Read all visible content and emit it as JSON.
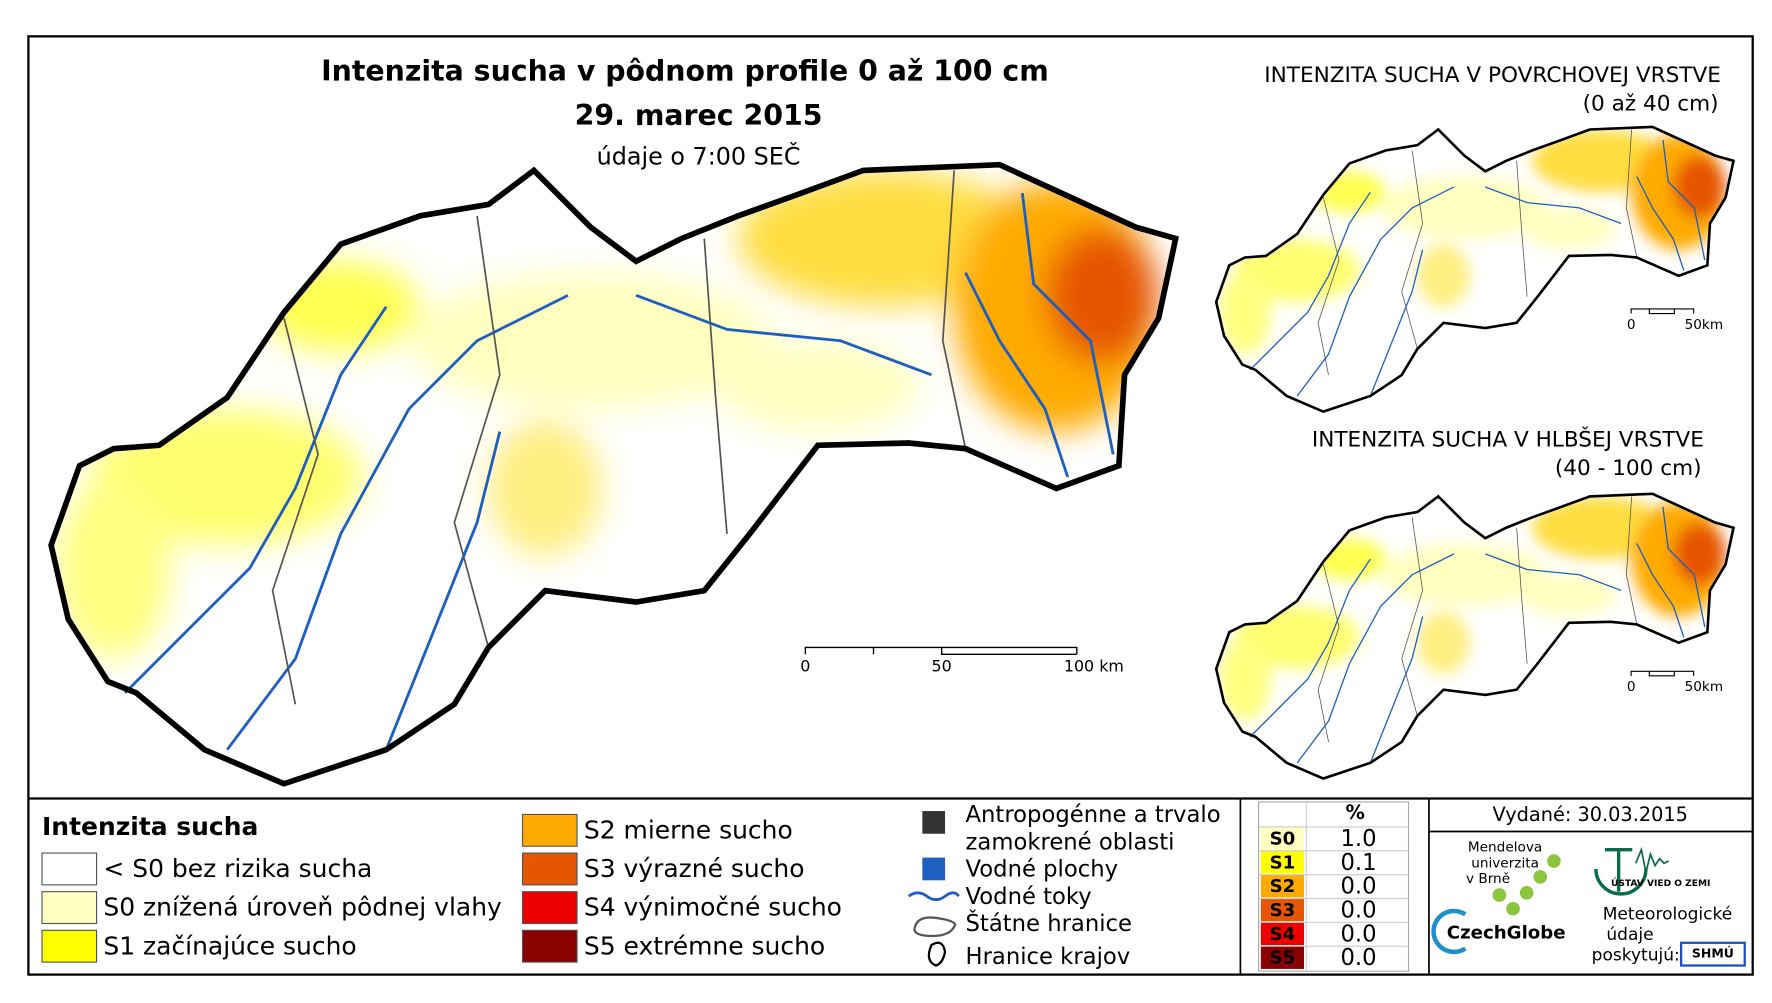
{
  "main_map": {
    "title": "Intenzita sucha v pôdnom profile 0 až 100 cm",
    "date": "29. marec 2015",
    "subtitle": "údaje o 7:00 SEČ",
    "scale_labels": [
      "0",
      "50",
      "100 km"
    ]
  },
  "inset_maps": [
    {
      "title": "INTENZITA SUCHA V POVRCHOVEJ VRSTVE",
      "subtitle": "(0 až 40 cm)",
      "scale_labels": [
        "0",
        "50km"
      ]
    },
    {
      "title": "INTENZITA SUCHA V HLBŠEJ VRSTVE",
      "subtitle": "(40 - 100 cm)",
      "scale_labels": [
        "0",
        "50km"
      ]
    }
  ],
  "legend": {
    "title": "Intenzita sucha",
    "classes": [
      {
        "label": "< S0 bez rizika sucha",
        "color": "#ffffff"
      },
      {
        "label": "S0 znížená úroveň pôdnej vlahy",
        "color": "#ffffc0"
      },
      {
        "label": "S1 začínajúce sucho",
        "color": "#ffff00"
      },
      {
        "label": "S2 mierne sucho",
        "color": "#ffaa00"
      },
      {
        "label": "S3 výrazné sucho",
        "color": "#e65500"
      },
      {
        "label": "S4 výnimočné sucho",
        "color": "#ee0000"
      },
      {
        "label": "S5 extrémne sucho",
        "color": "#8b0000"
      }
    ]
  },
  "symbols": [
    {
      "label": [
        "Antropogénne a trvalo",
        "zamokrené oblasti"
      ]
    },
    {
      "label": [
        "Vodné plochy"
      ]
    },
    {
      "label": [
        "Vodné toky"
      ]
    },
    {
      "label": [
        "Štátne hranice"
      ]
    },
    {
      "label": [
        "Hranice krajov"
      ]
    }
  ],
  "stats": {
    "header": "%",
    "rows": [
      {
        "class": "S0",
        "value": "1.0",
        "color": "#ffffc0"
      },
      {
        "class": "S1",
        "value": "0.1",
        "color": "#ffff00"
      },
      {
        "class": "S2",
        "value": "0.0",
        "color": "#ffaa00"
      },
      {
        "class": "S3",
        "value": "0.0",
        "color": "#e65500"
      },
      {
        "class": "S4",
        "value": "0.0",
        "color": "#ee0000"
      },
      {
        "class": "S5",
        "value": "0.0",
        "color": "#8b0000"
      }
    ]
  },
  "issued": "Vydané: 30.03.2015",
  "credits": {
    "university": [
      "Mendelova",
      "univerzita",
      "v Brně"
    ],
    "czechglobe": "CzechGlobe",
    "institute": "ÚSTAV VIED O ZEMI",
    "meteo": [
      "Meteorologické",
      "údaje",
      "poskytujú:"
    ],
    "shmu": "SHMÚ"
  }
}
